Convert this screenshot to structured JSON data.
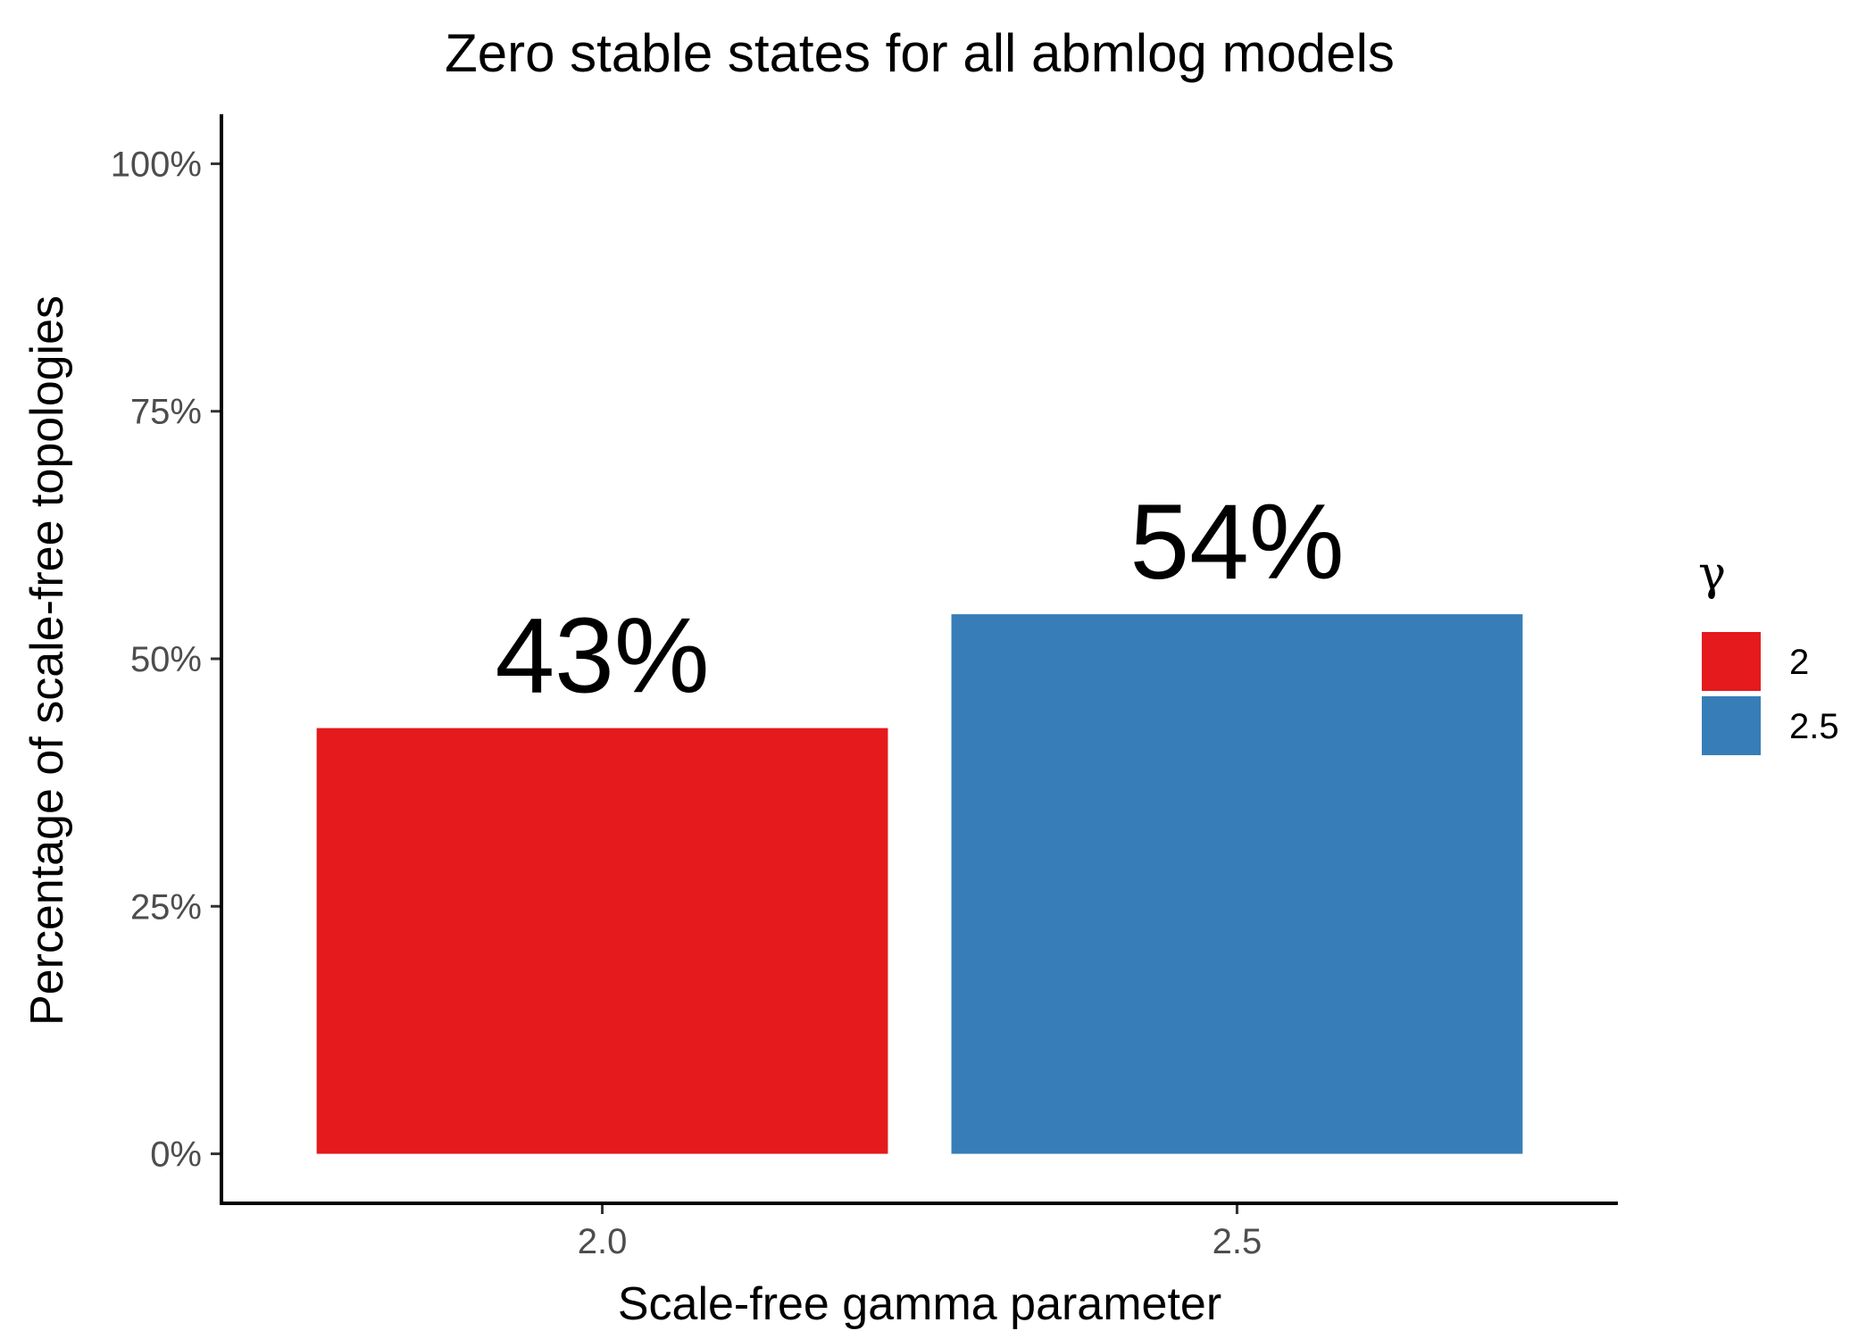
{
  "chart_data": {
    "type": "bar",
    "title": "Zero stable states for all abmlog models",
    "xlabel": "Scale-free gamma parameter",
    "ylabel": "Percentage of scale-free topologies",
    "categories": [
      "2.0",
      "2.5"
    ],
    "values": [
      43,
      54.5
    ],
    "value_labels": [
      "43%",
      "54%"
    ],
    "ylim": [
      -5,
      105
    ],
    "yticks": [
      0,
      25,
      50,
      75,
      100
    ],
    "ytick_labels": [
      "0%",
      "25%",
      "50%",
      "75%",
      "100%"
    ],
    "grid": false,
    "colors": [
      "#E41A1C",
      "#377EB8"
    ],
    "legend": {
      "title": "γ",
      "placement": "right",
      "entries": [
        {
          "label": "2",
          "color": "#E41A1C"
        },
        {
          "label": "2.5",
          "color": "#377EB8"
        }
      ]
    }
  }
}
